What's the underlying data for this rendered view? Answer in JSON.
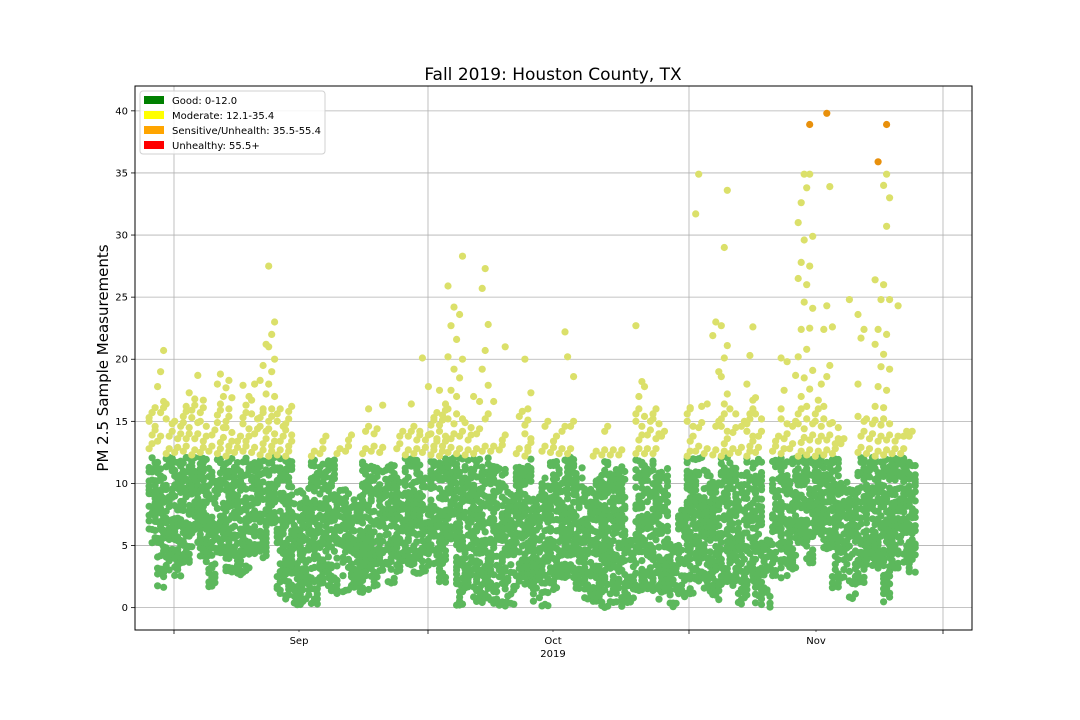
{
  "chart_data": {
    "type": "scatter",
    "title": "Fall 2019: Houston County, TX",
    "xlabel": "",
    "ylabel": "PM 2.5 Sample Measurements",
    "x_tick_labels": [
      "Sep",
      "Oct",
      "Nov"
    ],
    "x_year_label": "2019",
    "x_range": [
      "2019-08-27",
      "2019-11-30"
    ],
    "ylim": [
      -1.8,
      42
    ],
    "y_ticks": [
      0,
      5,
      10,
      15,
      20,
      25,
      30,
      35,
      40
    ],
    "grid": true,
    "legend_position": "top-left",
    "legend": [
      {
        "label": "Good: 0-12.0",
        "color": "#008000"
      },
      {
        "label": "Moderate: 12.1-35.4",
        "color": "#ffff00"
      },
      {
        "label": "Sensitive/Unhealth: 35.5-55.4",
        "color": "#ffa500"
      },
      {
        "label": "Unhealthy: 55.5+",
        "color": "#ff0000"
      }
    ],
    "point_colors": {
      "good": "#5cb85c",
      "moderate": "#dbe06a",
      "sensitive": "#e8900c",
      "unhealthy": "#ff0000"
    },
    "daily": [
      {
        "date": "2019-08-27",
        "min": 5.2,
        "good_max": 12.0,
        "moderate": [
          12.8,
          13.9,
          14.6,
          15.3,
          15.7
        ]
      },
      {
        "date": "2019-08-28",
        "min": 1.7,
        "good_max": 11.6,
        "moderate": [
          13.4,
          15.7,
          16.6,
          17.8,
          19.0,
          20.7
        ]
      },
      {
        "date": "2019-08-29",
        "min": 3.0,
        "good_max": 12.0,
        "moderate": [
          12.4,
          13.8,
          14.8,
          16.4
        ]
      },
      {
        "date": "2019-08-30",
        "min": 2.3,
        "good_max": 11.7,
        "moderate": [
          12.5,
          13.6,
          14.6
        ]
      },
      {
        "date": "2019-08-31",
        "min": 3.6,
        "good_max": 12.0,
        "moderate": [
          12.6,
          13.6,
          14.5,
          15.4,
          16.2,
          17.3
        ]
      },
      {
        "date": "2019-09-01",
        "min": 4.6,
        "good_max": 12.0,
        "moderate": [
          12.3,
          13.6,
          14.9,
          15.9,
          16.8,
          18.7
        ]
      },
      {
        "date": "2019-09-02",
        "min": 3.8,
        "good_max": 12.0,
        "moderate": [
          12.5,
          13.4,
          14.6,
          15.7,
          16.7
        ]
      },
      {
        "date": "2019-09-03",
        "min": 1.7,
        "good_max": 11.2,
        "moderate": [
          12.6,
          13.9
        ]
      },
      {
        "date": "2019-09-04",
        "min": 4.5,
        "good_max": 12.0,
        "moderate": [
          12.4,
          13.3,
          14.5,
          15.5,
          16.4,
          17.0,
          18.0,
          18.8
        ]
      },
      {
        "date": "2019-09-05",
        "min": 2.9,
        "good_max": 12.0,
        "moderate": [
          12.2,
          13.0,
          14.1,
          15.0,
          16.0,
          16.9,
          17.7,
          18.3
        ]
      },
      {
        "date": "2019-09-06",
        "min": 2.7,
        "good_max": 11.6,
        "moderate": [
          12.5,
          13.4
        ]
      },
      {
        "date": "2019-09-07",
        "min": 2.9,
        "good_max": 12.0,
        "moderate": [
          12.6,
          13.4,
          14.4,
          15.3,
          16.3,
          17.0,
          17.9
        ]
      },
      {
        "date": "2019-09-08",
        "min": 4.4,
        "good_max": 11.6,
        "moderate": [
          12.5,
          14.0,
          15.2,
          16.7,
          18.0
        ]
      },
      {
        "date": "2019-09-09",
        "min": 4.1,
        "good_max": 11.8,
        "moderate": [
          12.3,
          13.2,
          14.2,
          15.3,
          16.0,
          17.2,
          18.3,
          19.5,
          21.2
        ]
      },
      {
        "date": "2019-09-10",
        "min": 6.9,
        "good_max": 12.0,
        "moderate": [
          12.2,
          13.0,
          14.0,
          15.0,
          16.0,
          17.0,
          18.0,
          19.0,
          20.0,
          21.0,
          22.0,
          23.0,
          27.5
        ]
      },
      {
        "date": "2019-09-11",
        "min": 1.1,
        "good_max": 12.0,
        "moderate": [
          12.3,
          13.4,
          14.6,
          15.6
        ]
      },
      {
        "date": "2019-09-12",
        "min": 0.7,
        "good_max": 11.8,
        "moderate": [
          12.2,
          13.0,
          13.9,
          14.8,
          15.8
        ]
      },
      {
        "date": "2019-09-13",
        "min": 0.3,
        "good_max": 9.4,
        "moderate": []
      },
      {
        "date": "2019-09-14",
        "min": 0.4,
        "good_max": 9.5,
        "moderate": []
      },
      {
        "date": "2019-09-15",
        "min": 0.4,
        "good_max": 11.8,
        "moderate": [
          12.2
        ]
      },
      {
        "date": "2019-09-16",
        "min": 2.0,
        "good_max": 11.6,
        "moderate": [
          12.4,
          13.4
        ]
      },
      {
        "date": "2019-09-17",
        "min": 1.4,
        "good_max": 11.8,
        "moderate": []
      },
      {
        "date": "2019-09-18",
        "min": 1.2,
        "good_max": 9.4,
        "moderate": [
          12.4
        ]
      },
      {
        "date": "2019-09-19",
        "min": 1.4,
        "good_max": 9.5,
        "moderate": [
          12.6,
          13.5
        ]
      },
      {
        "date": "2019-09-20",
        "min": 1.3,
        "good_max": 9.0,
        "moderate": []
      },
      {
        "date": "2019-09-21",
        "min": 1.2,
        "good_max": 11.8,
        "moderate": [
          12.4,
          14.2,
          16.0
        ]
      },
      {
        "date": "2019-09-22",
        "min": 1.8,
        "good_max": 11.3,
        "moderate": [
          12.6,
          14.0
        ]
      },
      {
        "date": "2019-09-23",
        "min": 3.0,
        "good_max": 11.0,
        "moderate": [
          12.5,
          16.3
        ]
      },
      {
        "date": "2019-09-24",
        "min": 2.0,
        "good_max": 11.4,
        "moderate": []
      },
      {
        "date": "2019-09-25",
        "min": 3.0,
        "good_max": 10.4,
        "moderate": [
          12.8,
          13.8
        ]
      },
      {
        "date": "2019-09-26",
        "min": 3.5,
        "good_max": 12.0,
        "moderate": [
          12.3,
          13.8,
          16.4
        ]
      },
      {
        "date": "2019-09-27",
        "min": 2.8,
        "good_max": 11.9,
        "moderate": [
          12.4,
          13.5,
          14.2
        ]
      },
      {
        "date": "2019-09-28",
        "min": 3.0,
        "good_max": 10.4,
        "moderate": [
          12.5,
          13.5,
          17.8,
          20.1
        ]
      },
      {
        "date": "2019-09-29",
        "min": 3.6,
        "good_max": 11.8,
        "moderate": [
          12.3,
          13.0,
          13.6,
          14.7,
          15.3
        ]
      },
      {
        "date": "2019-09-30",
        "min": 2.1,
        "good_max": 12.0,
        "moderate": [
          12.2,
          13.0,
          13.8,
          14.7,
          15.5,
          16.4,
          17.5
        ]
      },
      {
        "date": "2019-10-01",
        "min": 5.5,
        "good_max": 12.0,
        "moderate": [
          12.5,
          13.6,
          14.8,
          16.0,
          17.5,
          19.2,
          20.2,
          22.7,
          24.2,
          25.9
        ]
      },
      {
        "date": "2019-10-02",
        "min": 0.2,
        "good_max": 12.0,
        "moderate": [
          12.4,
          13.8,
          15.2,
          17.0,
          18.5,
          20.0,
          21.6,
          23.6,
          28.3
        ]
      },
      {
        "date": "2019-10-03",
        "min": 1.6,
        "good_max": 11.8,
        "moderate": [
          12.3,
          13.5,
          14.5
        ]
      },
      {
        "date": "2019-10-04",
        "min": 0.6,
        "good_max": 12.0,
        "moderate": [
          12.4,
          14.0,
          16.6,
          17.0
        ]
      },
      {
        "date": "2019-10-05",
        "min": 0.5,
        "good_max": 12.0,
        "moderate": [
          12.6,
          15.2,
          17.9,
          19.2,
          20.7,
          22.8,
          25.7,
          27.3
        ]
      },
      {
        "date": "2019-10-06",
        "min": 0.3,
        "good_max": 11.4,
        "moderate": [
          12.6,
          16.6
        ]
      },
      {
        "date": "2019-10-07",
        "min": 0.1,
        "good_max": 11.1,
        "moderate": [
          12.7,
          13.5,
          21.0
        ]
      },
      {
        "date": "2019-10-08",
        "min": 0.3,
        "good_max": 9.2,
        "moderate": []
      },
      {
        "date": "2019-10-09",
        "min": 1.8,
        "good_max": 11.2,
        "moderate": [
          12.4,
          15.4
        ]
      },
      {
        "date": "2019-10-10",
        "min": 1.8,
        "good_max": 12.0,
        "moderate": [
          12.2,
          12.9,
          13.6,
          14.7,
          16.0,
          17.3,
          20.0
        ]
      },
      {
        "date": "2019-10-11",
        "min": 0.5,
        "good_max": 9.0,
        "moderate": []
      },
      {
        "date": "2019-10-12",
        "min": 0.2,
        "good_max": 10.4,
        "moderate": [
          12.6,
          14.6
        ]
      },
      {
        "date": "2019-10-13",
        "min": 1.2,
        "good_max": 11.7,
        "moderate": [
          12.5,
          13.4
        ]
      },
      {
        "date": "2019-10-14",
        "min": 2.5,
        "good_max": 11.8,
        "moderate": [
          12.4,
          14.2,
          22.2
        ]
      },
      {
        "date": "2019-10-15",
        "min": 2.5,
        "good_max": 12.0,
        "moderate": [
          12.4,
          14.6,
          18.6,
          20.2
        ]
      },
      {
        "date": "2019-10-16",
        "min": 1.6,
        "good_max": 11.2,
        "moderate": []
      },
      {
        "date": "2019-10-17",
        "min": 0.4,
        "good_max": 9.6,
        "moderate": []
      },
      {
        "date": "2019-10-18",
        "min": 0.6,
        "good_max": 10.6,
        "moderate": [
          12.2
        ]
      },
      {
        "date": "2019-10-19",
        "min": 0.1,
        "good_max": 11.8,
        "moderate": [
          12.3,
          14.2
        ]
      },
      {
        "date": "2019-10-20",
        "min": 0.5,
        "good_max": 11.2,
        "moderate": [
          12.3
        ]
      },
      {
        "date": "2019-10-21",
        "min": 0.2,
        "good_max": 11.4,
        "moderate": [
          12.3
        ]
      },
      {
        "date": "2019-10-22",
        "min": 0.4,
        "good_max": 5.4,
        "moderate": []
      },
      {
        "date": "2019-10-23",
        "min": 1.4,
        "good_max": 11.8,
        "moderate": [
          12.4,
          13.5,
          14.6,
          15.6,
          17.0,
          18.2,
          22.7
        ]
      },
      {
        "date": "2019-10-24",
        "min": 1.5,
        "good_max": 11.4,
        "moderate": [
          12.4,
          13.9,
          15.0,
          17.8
        ]
      },
      {
        "date": "2019-10-25",
        "min": 0.7,
        "good_max": 11.8,
        "moderate": [
          12.4,
          13.6,
          14.8,
          15.6
        ]
      },
      {
        "date": "2019-10-26",
        "min": 1.3,
        "good_max": 11.6,
        "moderate": [
          13.8
        ]
      },
      {
        "date": "2019-10-27",
        "min": 0.1,
        "good_max": 5.2,
        "moderate": []
      },
      {
        "date": "2019-10-28",
        "min": 0.8,
        "good_max": 7.8,
        "moderate": []
      },
      {
        "date": "2019-10-29",
        "min": 1.2,
        "good_max": 12.0,
        "moderate": [
          12.2,
          13.4,
          14.6,
          15.6,
          16.1
        ]
      },
      {
        "date": "2019-10-30",
        "min": 2.2,
        "good_max": 12.0,
        "moderate": [
          12.6,
          14.5,
          16.2,
          31.7,
          34.9
        ]
      },
      {
        "date": "2019-10-31",
        "min": 1.3,
        "good_max": 11.0,
        "moderate": [
          12.4,
          16.4
        ]
      },
      {
        "date": "2019-11-01",
        "min": 0.7,
        "good_max": 10.0,
        "moderate": [
          12.3,
          14.6,
          19.0,
          21.9,
          23.0
        ]
      },
      {
        "date": "2019-11-02",
        "min": 1.8,
        "good_max": 12.0,
        "moderate": [
          12.2,
          13.2,
          14.2,
          15.2,
          16.4,
          17.2,
          18.6,
          20.1,
          21.1,
          22.7,
          29.0,
          33.6
        ]
      },
      {
        "date": "2019-11-03",
        "min": 1.8,
        "good_max": 11.6,
        "moderate": [
          12.4,
          14.1,
          15.6
        ]
      },
      {
        "date": "2019-11-04",
        "min": 0.4,
        "good_max": 10.6,
        "moderate": [
          12.5,
          14.6
        ]
      },
      {
        "date": "2019-11-05",
        "min": 1.1,
        "good_max": 12.0,
        "moderate": [
          12.2,
          13.0,
          13.8,
          14.8,
          15.6,
          16.7,
          18.0,
          20.3,
          22.6
        ]
      },
      {
        "date": "2019-11-06",
        "min": 0.3,
        "good_max": 12.0,
        "moderate": [
          12.5,
          13.8,
          15.2,
          16.9
        ]
      },
      {
        "date": "2019-11-07",
        "min": 0.1,
        "good_max": 5.4,
        "moderate": []
      },
      {
        "date": "2019-11-08",
        "min": 2.6,
        "good_max": 11.8,
        "moderate": [
          12.6,
          13.4
        ]
      },
      {
        "date": "2019-11-09",
        "min": 2.5,
        "good_max": 12.0,
        "moderate": [
          12.4,
          13.6,
          14.8,
          16.0,
          17.5,
          19.8,
          20.1
        ]
      },
      {
        "date": "2019-11-10",
        "min": 3.2,
        "good_max": 12.0,
        "moderate": [
          12.8,
          14.6,
          18.7
        ]
      },
      {
        "date": "2019-11-11",
        "min": 5.2,
        "good_max": 12.0,
        "moderate": [
          12.2,
          13.3,
          14.4,
          15.6,
          17.0,
          18.5,
          20.2,
          22.4,
          24.6,
          26.5,
          27.8,
          29.6,
          31.0,
          32.6,
          34.9
        ],
        "sensitive": []
      },
      {
        "date": "2019-11-12",
        "min": 3.6,
        "good_max": 12.0,
        "moderate": [
          12.3,
          13.5,
          14.8,
          16.2,
          17.6,
          19.1,
          20.8,
          22.5,
          24.1,
          26.0,
          27.5,
          29.9,
          33.8,
          34.9
        ],
        "sensitive": [
          38.9
        ]
      },
      {
        "date": "2019-11-13",
        "min": 5.8,
        "good_max": 12.0,
        "moderate": [
          12.2,
          13.4,
          14.6,
          15.6,
          16.7,
          18.0
        ]
      },
      {
        "date": "2019-11-14",
        "min": 4.8,
        "good_max": 12.0,
        "moderate": [
          12.3,
          13.5,
          14.8,
          16.2,
          18.6,
          19.5,
          22.4,
          24.3,
          33.9
        ],
        "sensitive": [
          39.8
        ]
      },
      {
        "date": "2019-11-15",
        "min": 1.7,
        "good_max": 12.0,
        "moderate": [
          12.4,
          13.2,
          14.5,
          22.6
        ]
      },
      {
        "date": "2019-11-16",
        "min": 2.4,
        "good_max": 10.0,
        "moderate": [
          13.2
        ]
      },
      {
        "date": "2019-11-17",
        "min": 0.8,
        "good_max": 9.5,
        "moderate": [
          24.8
        ]
      },
      {
        "date": "2019-11-18",
        "min": 2.0,
        "good_max": 12.0,
        "moderate": [
          12.5,
          13.8,
          15.0,
          18.0,
          21.7,
          22.4,
          23.6
        ]
      },
      {
        "date": "2019-11-19",
        "min": 3.4,
        "good_max": 12.0,
        "moderate": [
          12.4,
          13.6,
          14.8
        ]
      },
      {
        "date": "2019-11-20",
        "min": 3.2,
        "good_max": 12.0,
        "moderate": [
          12.2,
          13.4,
          14.7,
          16.2,
          17.8,
          19.4,
          21.2,
          22.4,
          24.8,
          26.4
        ],
        "sensitive": [
          35.9
        ]
      },
      {
        "date": "2019-11-21",
        "min": 0.5,
        "good_max": 12.0,
        "moderate": [
          12.3,
          13.5,
          14.8,
          16.1,
          17.5,
          19.2,
          20.4,
          22.0,
          24.8,
          26.0,
          30.7,
          33.0,
          34.0,
          34.9
        ],
        "sensitive": [
          38.9
        ]
      },
      {
        "date": "2019-11-22",
        "min": 3.2,
        "good_max": 12.0,
        "moderate": [
          12.4,
          13.4,
          24.3
        ]
      },
      {
        "date": "2019-11-23",
        "min": 3.6,
        "good_max": 12.0,
        "moderate": [
          12.4,
          13.8
        ]
      },
      {
        "date": "2019-11-24",
        "min": 2.8,
        "good_max": 11.8,
        "moderate": [
          13.8
        ]
      }
    ]
  }
}
